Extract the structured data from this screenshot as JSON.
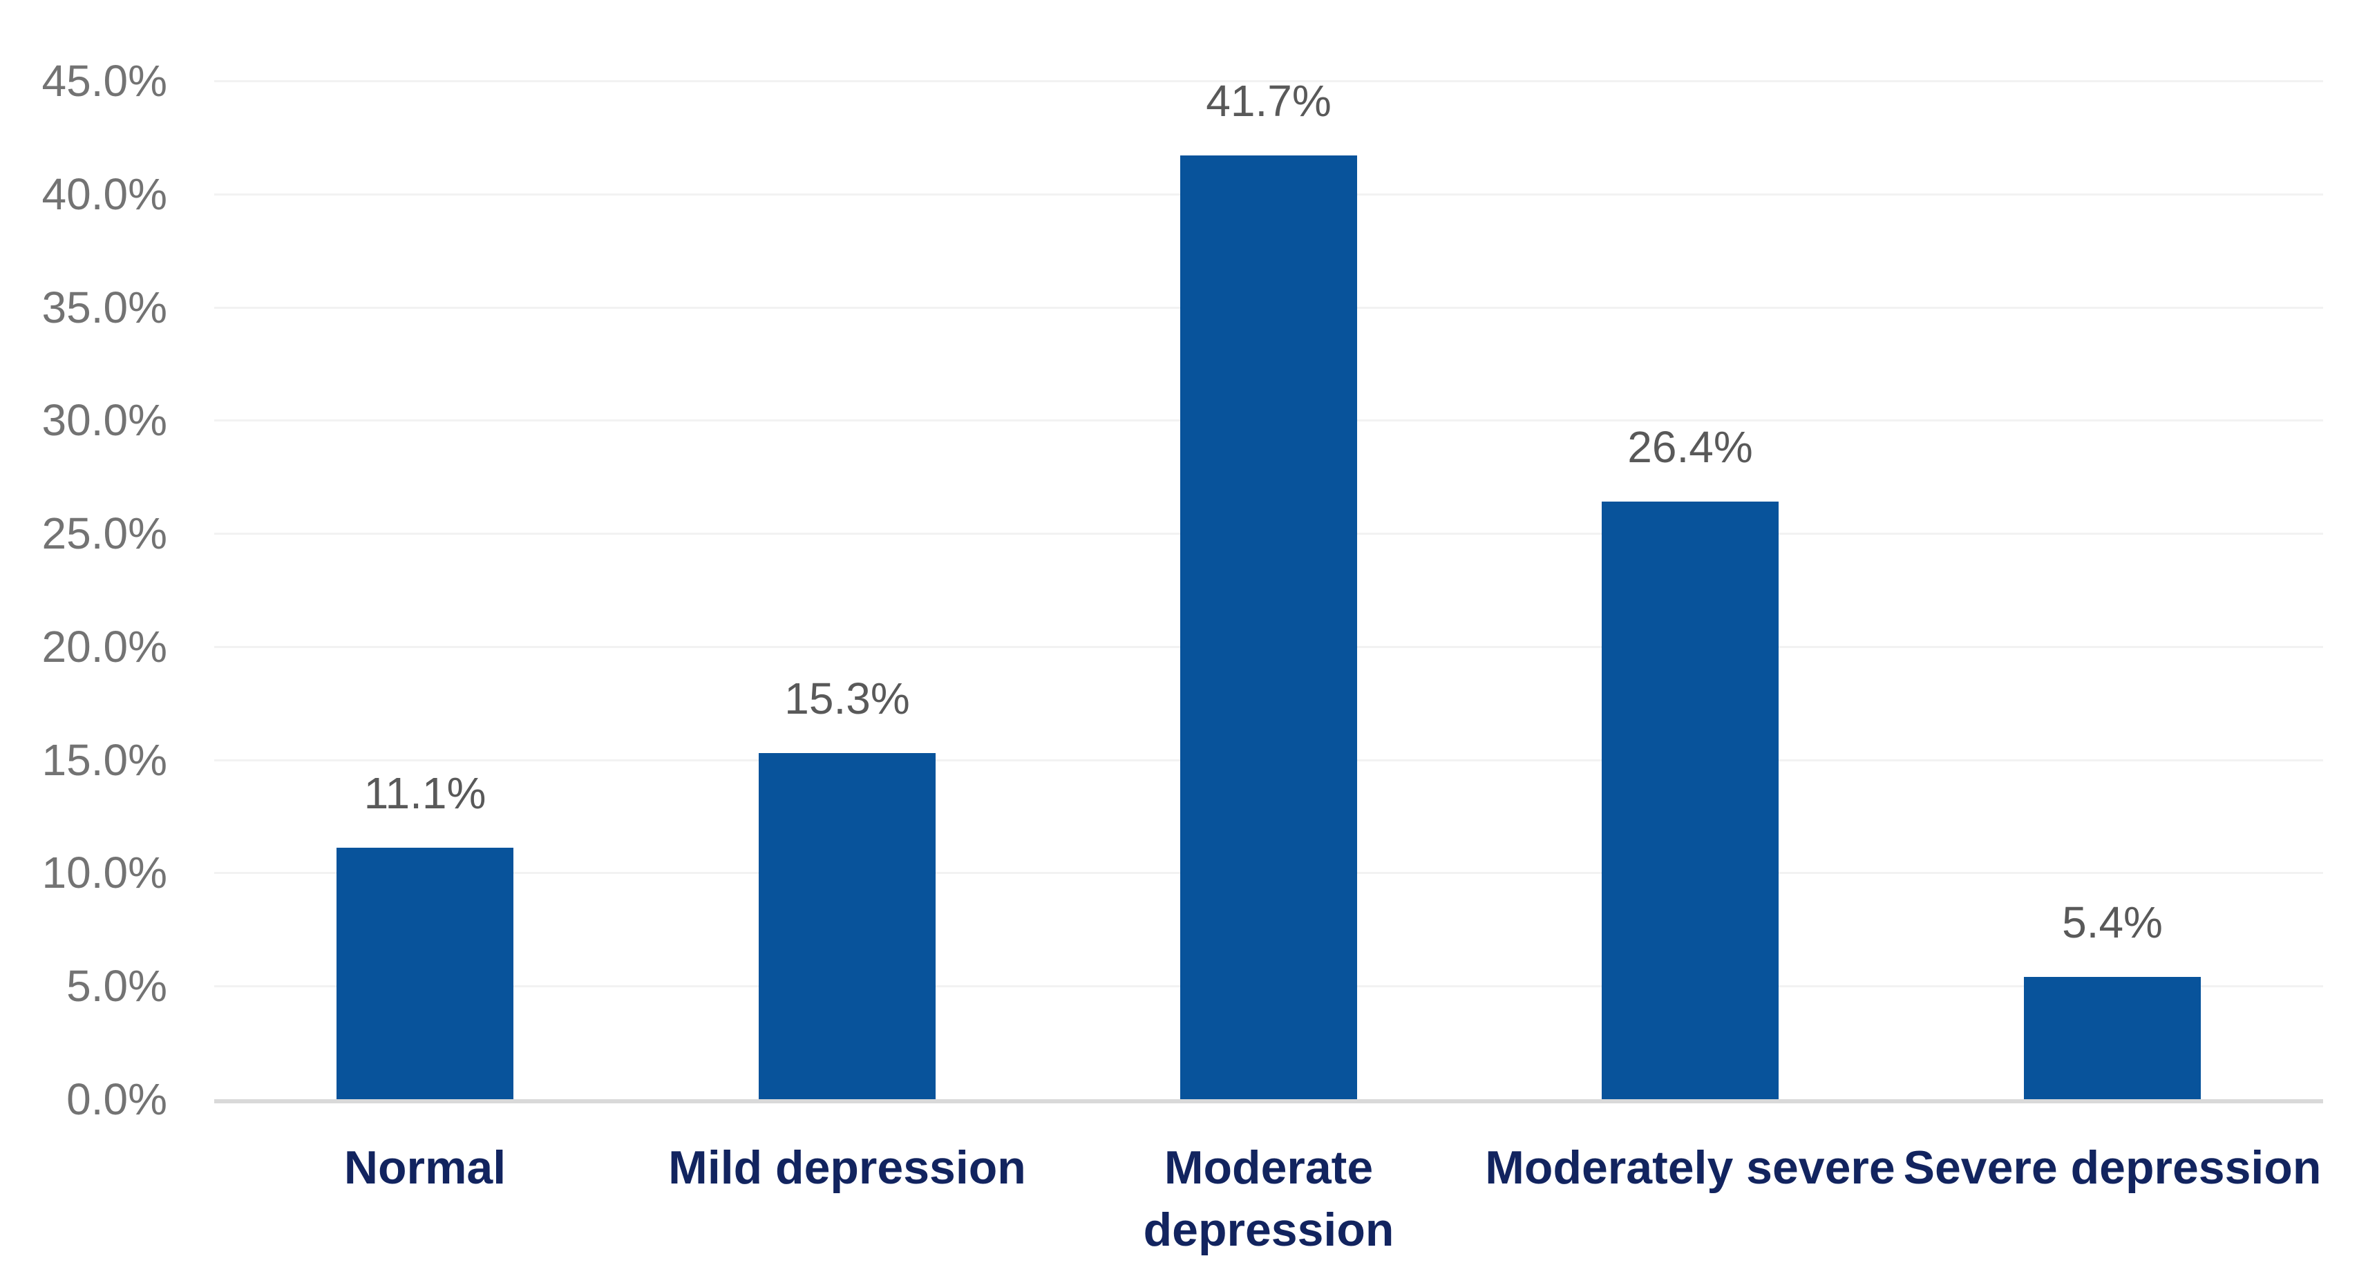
{
  "chart_data": {
    "type": "bar",
    "title": "",
    "xlabel": "",
    "ylabel": "",
    "categories": [
      "Normal",
      "Mild depression",
      "Moderate depression",
      "Moderately severe",
      "Severe depression"
    ],
    "values": [
      11.1,
      15.3,
      41.7,
      26.4,
      5.4
    ],
    "value_labels": [
      "11.1%",
      "15.3%",
      "41.7%",
      "26.4%",
      "5.4%"
    ],
    "y_ticks": [
      0,
      5,
      10,
      15,
      20,
      25,
      30,
      35,
      40,
      45
    ],
    "y_tick_labels": [
      "0.0%",
      "5.0%",
      "10.0%",
      "15.0%",
      "20.0%",
      "25.0%",
      "30.0%",
      "35.0%",
      "40.0%",
      "45.0%"
    ],
    "ylim": [
      0,
      45
    ],
    "grid": "horizontal",
    "legend": null,
    "colors": {
      "bar": "#08539B",
      "value_label": "#595959",
      "tick_label": "#737373",
      "category_label": "#12245F",
      "axis_line": "#D9D9D9",
      "gridline": "#F2F2F2",
      "background": "#FFFFFF"
    }
  }
}
